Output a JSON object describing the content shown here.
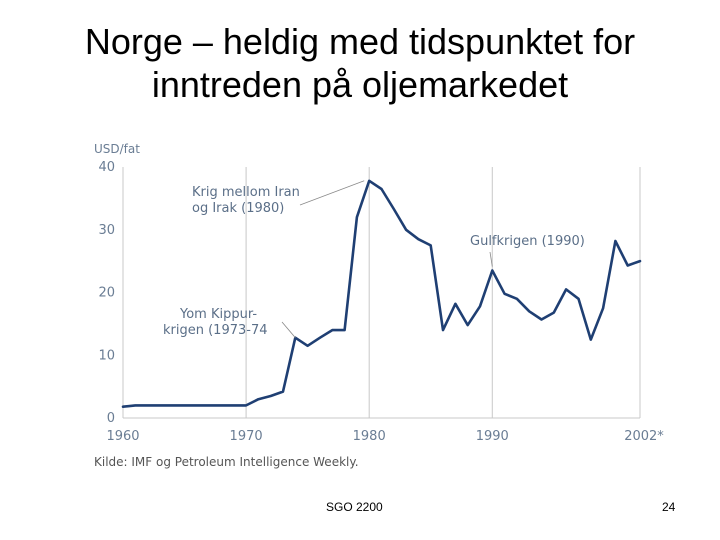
{
  "slide": {
    "title_line1": "Norge – heldig med tidspunktet for",
    "title_line2": "inntreden på oljemarkedet",
    "footer_center": "SGO 2200",
    "page_number": "24"
  },
  "chart_data": {
    "type": "line",
    "ylabel": "USD/fat",
    "ylim": [
      0,
      40
    ],
    "yticks": [
      0,
      10,
      20,
      30,
      40
    ],
    "xlim": [
      1960,
      2002
    ],
    "xticks": [
      {
        "value": 1960,
        "label": "1960"
      },
      {
        "value": 1970,
        "label": "1970"
      },
      {
        "value": 1980,
        "label": "1980"
      },
      {
        "value": 1990,
        "label": "1990"
      },
      {
        "value": 2002,
        "label": "2002*"
      }
    ],
    "grid": "vertical",
    "line_color": "#1f3f73",
    "source": "Kilde: IMF og Petroleum Intelligence Weekly.",
    "series": [
      {
        "x": [
          1960,
          1961,
          1962,
          1963,
          1964,
          1965,
          1966,
          1967,
          1968,
          1969,
          1970,
          1971,
          1972,
          1973,
          1974,
          1975,
          1976,
          1977,
          1978,
          1979,
          1980,
          1981,
          1982,
          1983,
          1984,
          1985,
          1986,
          1987,
          1988,
          1989,
          1990,
          1991,
          1992,
          1993,
          1994,
          1995,
          1996,
          1997,
          1998,
          1999,
          2000,
          2001,
          2002
        ],
        "y": [
          1.8,
          2.0,
          2.0,
          2.0,
          2.0,
          2.0,
          2.0,
          2.0,
          2.0,
          2.0,
          2.0,
          3.0,
          3.5,
          4.2,
          12.8,
          11.5,
          12.8,
          14.0,
          14.0,
          32.0,
          37.8,
          36.5,
          33.3,
          30.0,
          28.5,
          27.5,
          14.0,
          18.2,
          14.8,
          17.8,
          23.5,
          19.8,
          19.0,
          17.0,
          15.7,
          16.8,
          20.5,
          19.0,
          12.5,
          17.5,
          28.2,
          24.3,
          25.0
        ]
      }
    ],
    "annotations": [
      {
        "line1": "Krig mellom Iran",
        "line2": "og Irak (1980)",
        "target_x": 1980,
        "target_y": 37.8
      },
      {
        "line1": "Yom Kippur-",
        "line2": "krigen (1973-74",
        "target_x": 1974,
        "target_y": 12.8
      },
      {
        "line1": "Gulfkrigen (1990)",
        "line2": "",
        "target_x": 1990,
        "target_y": 23.5
      }
    ]
  }
}
